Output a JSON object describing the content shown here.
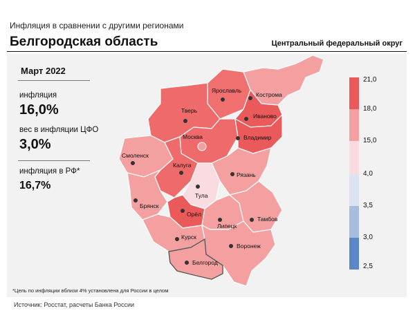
{
  "header": {
    "subtitle": "Инфляция  в сравнении  с другими регионами",
    "title": "Белгородская область",
    "district": "Центральный федеральный округ"
  },
  "info": {
    "date": "Март 2022",
    "inflation_label": "инфляция",
    "inflation_value": "16,0%",
    "weight_label": "вес в инфляции ЦФО",
    "weight_value": "3,0%",
    "russia_label": "инфляция  в РФ*",
    "russia_value": "16,7%"
  },
  "regions": [
    {
      "name": "Ярославль",
      "color": "#f07070"
    },
    {
      "name": "Кострома",
      "color": "#f5a0a0"
    },
    {
      "name": "Тверь",
      "color": "#ef6b6b"
    },
    {
      "name": "Иваново",
      "color": "#ea5a5a"
    },
    {
      "name": "Москва",
      "color": "#ef6b6b"
    },
    {
      "name": "Владимир",
      "color": "#ea5a5a"
    },
    {
      "name": "Смоленск",
      "color": "#f5a0a0"
    },
    {
      "name": "Калуга",
      "color": "#ef6b6b"
    },
    {
      "name": "Рязань",
      "color": "#f5a0a0"
    },
    {
      "name": "Тула",
      "color": "#f9dbe0"
    },
    {
      "name": "Брянск",
      "color": "#f5a0a0"
    },
    {
      "name": "Орёл",
      "color": "#ea5a5a"
    },
    {
      "name": "Липецк",
      "color": "#f5a0a0"
    },
    {
      "name": "Тамбов",
      "color": "#f5a0a0"
    },
    {
      "name": "Курск",
      "color": "#f5a0a0"
    },
    {
      "name": "Воронеж",
      "color": "#f5a0a0"
    },
    {
      "name": "Белгород",
      "color": "#f5a0a0"
    }
  ],
  "legend": {
    "ticks": [
      "21,0",
      "18,0",
      "15,0",
      "4,0",
      "3,5",
      "3,0",
      "2,5"
    ],
    "colors": [
      "#ea5a5a",
      "#f5a0a0",
      "#f9dbe0",
      "#dce4f2",
      "#a8bedf",
      "#5b86c7"
    ]
  },
  "footnote": "*Цель по инфляции вблизи 4% установлена для России в целом",
  "source": "Источник: Росстат, расчеты Банка России"
}
